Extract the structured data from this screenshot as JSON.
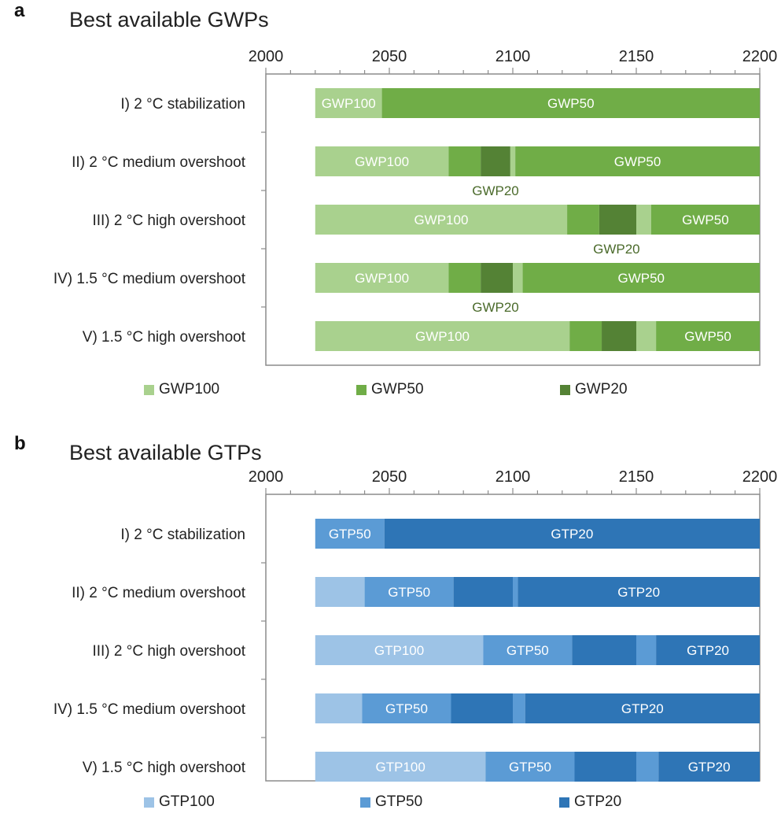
{
  "chart_data": [
    {
      "type": "bar",
      "orientation": "horizontal-stacked-timeline",
      "panel_letter": "a",
      "title": "Best available GWPs",
      "xlim": [
        2000,
        2200
      ],
      "x_ticks": [
        2000,
        2050,
        2100,
        2150,
        2200
      ],
      "x_axis_position": "top",
      "categories": [
        "I) 2 °C stabilization",
        "II) 2 °C medium overshoot",
        "III) 2 °C high overshoot",
        "IV) 1.5 °C medium overshoot",
        "V) 1.5 °C high overshoot"
      ],
      "series": [
        {
          "name": "GWP100",
          "color": "#a9d18e"
        },
        {
          "name": "GWP50",
          "color": "#70ad47"
        },
        {
          "name": "GWP20",
          "color": "#548235"
        }
      ],
      "rows": [
        {
          "segments": [
            {
              "series": "GWP100",
              "start": 2020,
              "end": 2047,
              "label": "GWP100"
            },
            {
              "series": "GWP50",
              "start": 2047,
              "end": 2200,
              "label": "GWP50"
            }
          ]
        },
        {
          "segments": [
            {
              "series": "GWP100",
              "start": 2020,
              "end": 2074,
              "label": "GWP100"
            },
            {
              "series": "GWP50",
              "start": 2074,
              "end": 2087,
              "label": ""
            },
            {
              "series": "GWP20",
              "start": 2087,
              "end": 2099,
              "label": ""
            },
            {
              "series": "GWP100",
              "start": 2099,
              "end": 2101,
              "label": ""
            },
            {
              "series": "GWP50",
              "start": 2101,
              "end": 2200,
              "label": "GWP50"
            }
          ],
          "annotation": {
            "text": "GWP20",
            "x": 2093
          }
        },
        {
          "segments": [
            {
              "series": "GWP100",
              "start": 2020,
              "end": 2122,
              "label": "GWP100"
            },
            {
              "series": "GWP50",
              "start": 2122,
              "end": 2135,
              "label": ""
            },
            {
              "series": "GWP20",
              "start": 2135,
              "end": 2150,
              "label": ""
            },
            {
              "series": "GWP100",
              "start": 2150,
              "end": 2156,
              "label": ""
            },
            {
              "series": "GWP50",
              "start": 2156,
              "end": 2200,
              "label": "GWP50"
            }
          ],
          "annotation": {
            "text": "GWP20",
            "x": 2142
          }
        },
        {
          "segments": [
            {
              "series": "GWP100",
              "start": 2020,
              "end": 2074,
              "label": "GWP100"
            },
            {
              "series": "GWP50",
              "start": 2074,
              "end": 2087,
              "label": ""
            },
            {
              "series": "GWP20",
              "start": 2087,
              "end": 2100,
              "label": ""
            },
            {
              "series": "GWP100",
              "start": 2100,
              "end": 2104,
              "label": ""
            },
            {
              "series": "GWP50",
              "start": 2104,
              "end": 2200,
              "label": "GWP50"
            }
          ],
          "annotation": {
            "text": "GWP20",
            "x": 2093
          }
        },
        {
          "segments": [
            {
              "series": "GWP100",
              "start": 2020,
              "end": 2123,
              "label": "GWP100"
            },
            {
              "series": "GWP50",
              "start": 2123,
              "end": 2136,
              "label": ""
            },
            {
              "series": "GWP20",
              "start": 2136,
              "end": 2150,
              "label": ""
            },
            {
              "series": "GWP100",
              "start": 2150,
              "end": 2158,
              "label": ""
            },
            {
              "series": "GWP50",
              "start": 2158,
              "end": 2200,
              "label": "GWP50"
            }
          ]
        }
      ],
      "legend": [
        "GWP100",
        "GWP50",
        "GWP20"
      ],
      "legend_position": "bottom"
    },
    {
      "type": "bar",
      "orientation": "horizontal-stacked-timeline",
      "panel_letter": "b",
      "title": "Best available GTPs",
      "xlim": [
        2000,
        2200
      ],
      "x_ticks": [
        2000,
        2050,
        2100,
        2150,
        2200
      ],
      "x_axis_position": "top",
      "categories": [
        "I) 2 °C stabilization",
        "II) 2 °C medium overshoot",
        "III) 2 °C high overshoot",
        "IV) 1.5 °C medium overshoot",
        "V) 1.5 °C high overshoot"
      ],
      "series": [
        {
          "name": "GTP100",
          "color": "#9dc3e6"
        },
        {
          "name": "GTP50",
          "color": "#5b9bd5"
        },
        {
          "name": "GTP20",
          "color": "#2e75b6"
        }
      ],
      "rows": [
        {
          "segments": [
            {
              "series": "GTP50",
              "start": 2020,
              "end": 2048,
              "label": "GTP50"
            },
            {
              "series": "GTP20",
              "start": 2048,
              "end": 2200,
              "label": "GTP20"
            }
          ]
        },
        {
          "segments": [
            {
              "series": "GTP100",
              "start": 2020,
              "end": 2040,
              "label": ""
            },
            {
              "series": "GTP50",
              "start": 2040,
              "end": 2076,
              "label": "GTP50"
            },
            {
              "series": "GTP20",
              "start": 2076,
              "end": 2100,
              "label": ""
            },
            {
              "series": "GTP50",
              "start": 2100,
              "end": 2102,
              "label": ""
            },
            {
              "series": "GTP20",
              "start": 2102,
              "end": 2200,
              "label": "GTP20"
            }
          ]
        },
        {
          "segments": [
            {
              "series": "GTP100",
              "start": 2020,
              "end": 2088,
              "label": "GTP100"
            },
            {
              "series": "GTP50",
              "start": 2088,
              "end": 2124,
              "label": "GTP50"
            },
            {
              "series": "GTP20",
              "start": 2124,
              "end": 2150,
              "label": ""
            },
            {
              "series": "GTP50",
              "start": 2150,
              "end": 2158,
              "label": ""
            },
            {
              "series": "GTP20",
              "start": 2158,
              "end": 2200,
              "label": "GTP20"
            }
          ]
        },
        {
          "segments": [
            {
              "series": "GTP100",
              "start": 2020,
              "end": 2039,
              "label": ""
            },
            {
              "series": "GTP50",
              "start": 2039,
              "end": 2075,
              "label": "GTP50"
            },
            {
              "series": "GTP20",
              "start": 2075,
              "end": 2100,
              "label": ""
            },
            {
              "series": "GTP50",
              "start": 2100,
              "end": 2105,
              "label": ""
            },
            {
              "series": "GTP20",
              "start": 2105,
              "end": 2200,
              "label": "GTP20"
            }
          ]
        },
        {
          "segments": [
            {
              "series": "GTP100",
              "start": 2020,
              "end": 2089,
              "label": "GTP100"
            },
            {
              "series": "GTP50",
              "start": 2089,
              "end": 2125,
              "label": "GTP50"
            },
            {
              "series": "GTP20",
              "start": 2125,
              "end": 2150,
              "label": ""
            },
            {
              "series": "GTP50",
              "start": 2150,
              "end": 2159,
              "label": ""
            },
            {
              "series": "GTP20",
              "start": 2159,
              "end": 2200,
              "label": "GTP20"
            }
          ]
        }
      ],
      "legend": [
        "GTP100",
        "GTP50",
        "GTP20"
      ],
      "legend_position": "bottom"
    }
  ]
}
